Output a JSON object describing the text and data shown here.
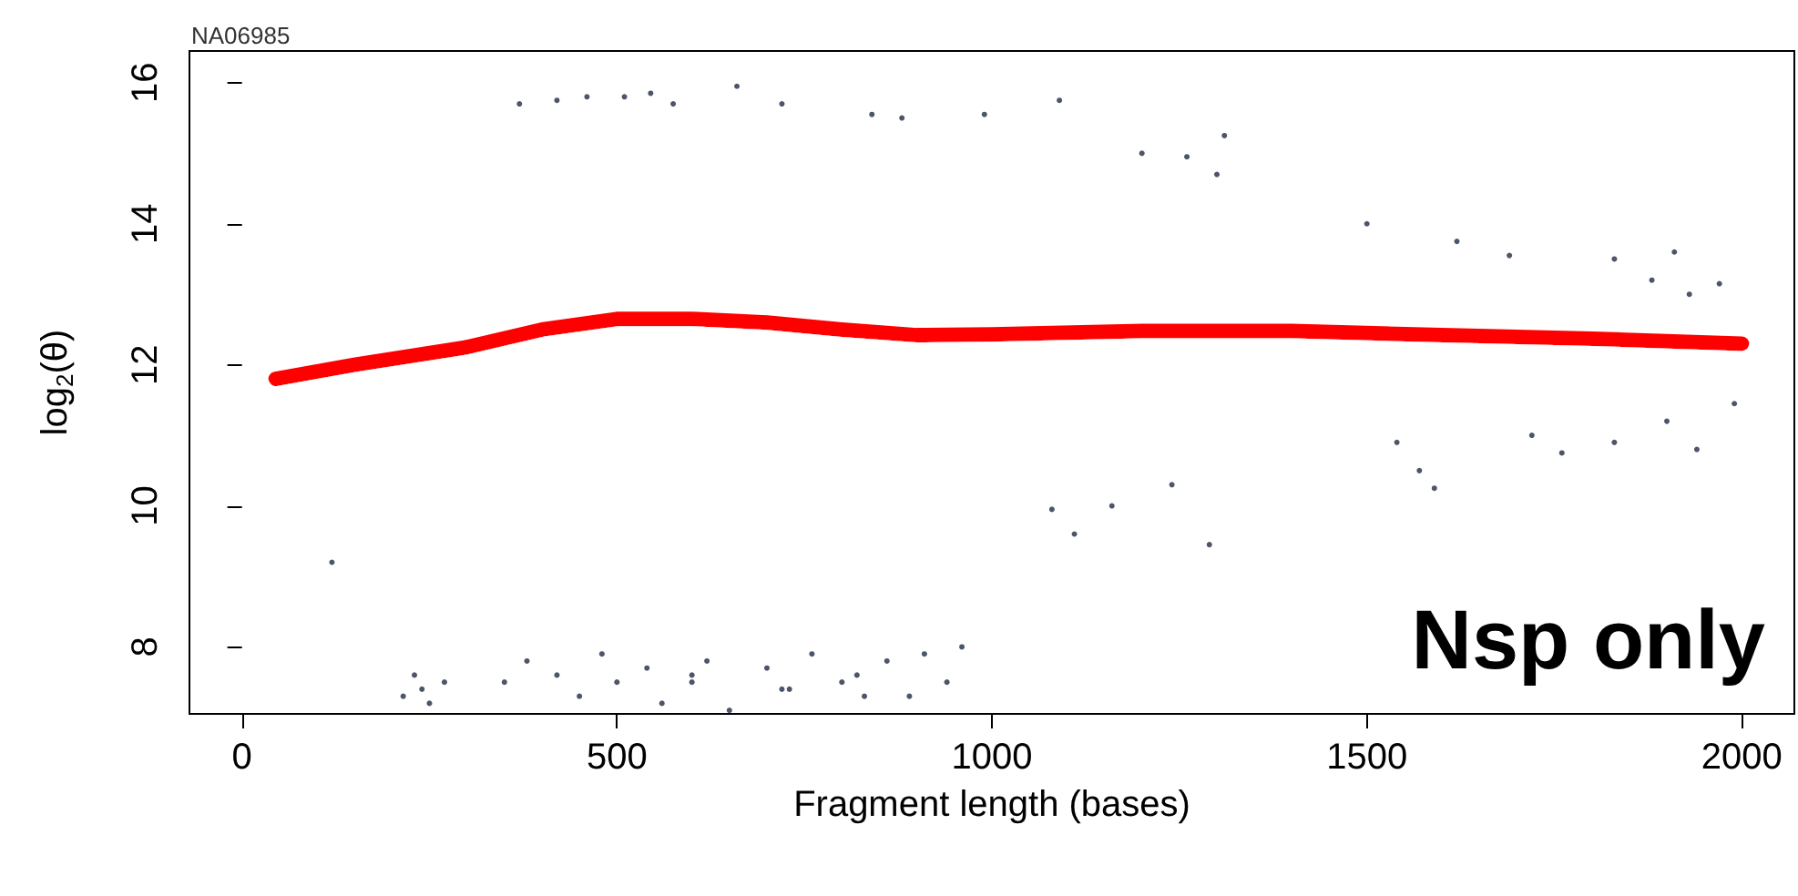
{
  "chart_data": {
    "type": "scatter",
    "xlabel": "Fragment length (bases)",
    "ylabel": "log$_{2}$(θ)",
    "annotations": [
      "NA06985",
      "Nsp only"
    ],
    "xlim": [
      -70,
      2070
    ],
    "ylim": [
      7.05,
      16.45
    ],
    "xticks": [
      0,
      500,
      1000,
      1500,
      2000
    ],
    "yticks": [
      8,
      10,
      12,
      14,
      16
    ],
    "grid": false,
    "series": [
      {
        "marker": "circle",
        "color": "#1f2a44",
        "x": [
          370,
          420,
          460,
          510,
          545,
          575,
          660,
          720,
          840,
          880,
          990,
          1090,
          1200,
          1260,
          1310,
          1300,
          1500,
          1620,
          1690,
          1830,
          1910,
          1930,
          1970,
          1880,
          1540,
          1570,
          1590,
          1720,
          1760,
          1830,
          1900,
          1940,
          1990,
          1240,
          1110,
          1080,
          1160,
          1290,
          120,
          215,
          230,
          250,
          270,
          350,
          380,
          420,
          450,
          480,
          500,
          540,
          560,
          600,
          620,
          650,
          700,
          730,
          760,
          800,
          830,
          860,
          890,
          910,
          940,
          960,
          240,
          600,
          720,
          820
        ],
        "values": [
          15.7,
          15.75,
          15.8,
          15.8,
          15.85,
          15.7,
          15.95,
          15.7,
          15.55,
          15.5,
          15.55,
          15.75,
          15.0,
          14.95,
          15.25,
          14.7,
          14.0,
          13.75,
          13.55,
          13.5,
          13.6,
          13.0,
          13.15,
          13.2,
          10.9,
          10.5,
          10.25,
          11.0,
          10.75,
          10.9,
          11.2,
          10.8,
          11.45,
          10.3,
          9.6,
          9.95,
          10.0,
          9.45,
          9.2,
          7.3,
          7.6,
          7.2,
          7.5,
          7.5,
          7.8,
          7.6,
          7.3,
          7.9,
          7.5,
          7.7,
          7.2,
          7.6,
          7.8,
          7.1,
          7.7,
          7.4,
          7.9,
          7.5,
          7.3,
          7.8,
          7.3,
          7.9,
          7.5,
          8.0,
          7.4,
          7.5,
          7.4,
          7.6
        ]
      },
      {
        "type": "line",
        "marker": "none",
        "line_style": "solid",
        "color": "#ff0000",
        "x": [
          45,
          150,
          300,
          400,
          500,
          600,
          700,
          800,
          900,
          1000,
          1200,
          1400,
          1600,
          1800,
          2000
        ],
        "values": [
          11.8,
          12.0,
          12.25,
          12.5,
          12.65,
          12.65,
          12.6,
          12.5,
          12.42,
          12.43,
          12.48,
          12.48,
          12.42,
          12.37,
          12.3
        ]
      }
    ]
  }
}
